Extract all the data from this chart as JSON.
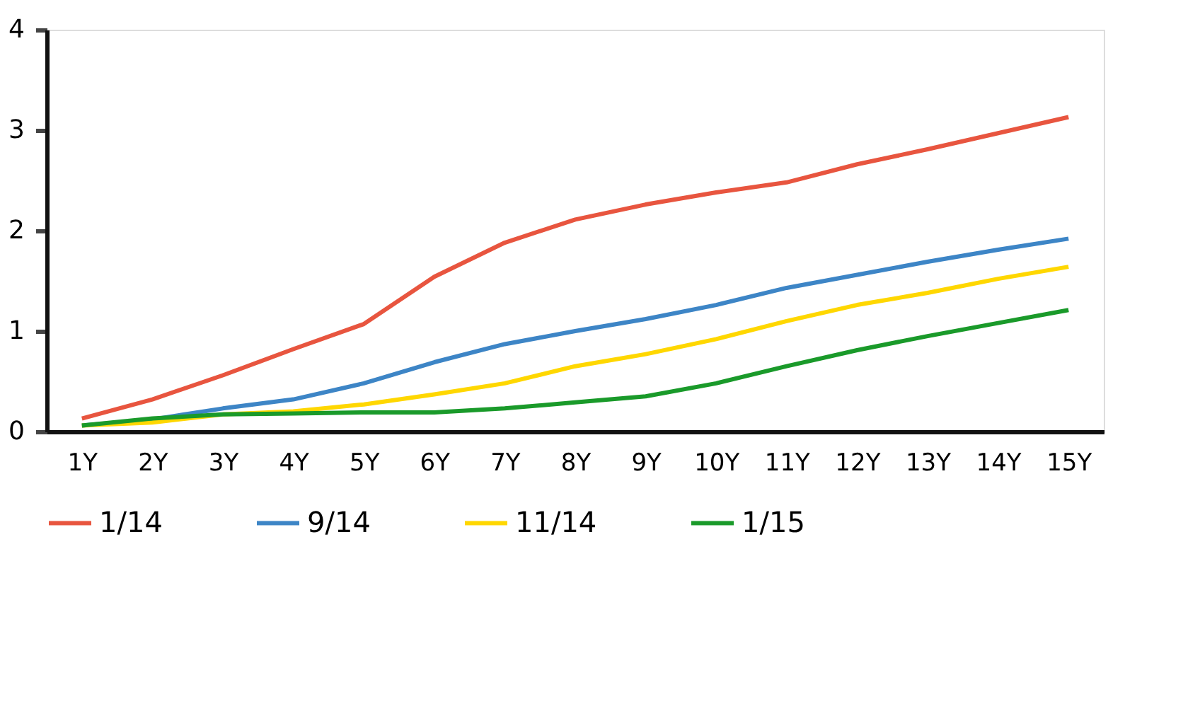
{
  "chart_data": {
    "type": "line",
    "categories": [
      "1Y",
      "2Y",
      "3Y",
      "4Y",
      "5Y",
      "6Y",
      "7Y",
      "8Y",
      "9Y",
      "10Y",
      "11Y",
      "12Y",
      "13Y",
      "14Y",
      "15Y"
    ],
    "series": [
      {
        "name": "1/14",
        "color": "#e8553f",
        "values": [
          0.13,
          0.32,
          0.56,
          0.82,
          1.07,
          1.54,
          1.88,
          2.11,
          2.26,
          2.38,
          2.48,
          2.66,
          2.81,
          2.97,
          3.13
        ]
      },
      {
        "name": "9/14",
        "color": "#3d85c6",
        "values": [
          0.06,
          0.12,
          0.23,
          0.32,
          0.48,
          0.69,
          0.87,
          1.0,
          1.12,
          1.26,
          1.43,
          1.56,
          1.69,
          1.81,
          1.92
        ]
      },
      {
        "name": "11/14",
        "color": "#ffd700",
        "values": [
          0.06,
          0.09,
          0.17,
          0.2,
          0.27,
          0.37,
          0.48,
          0.65,
          0.77,
          0.92,
          1.1,
          1.26,
          1.38,
          1.52,
          1.64
        ]
      },
      {
        "name": "1/15",
        "color": "#1a9a2a",
        "values": [
          0.06,
          0.13,
          0.17,
          0.18,
          0.19,
          0.19,
          0.23,
          0.29,
          0.35,
          0.48,
          0.65,
          0.81,
          0.95,
          1.08,
          1.21
        ]
      }
    ],
    "ylim": [
      0,
      4
    ],
    "yticks": [
      0,
      1,
      2,
      3,
      4
    ],
    "grid": false,
    "legend": "bottom",
    "marker": "none",
    "line_style": "solid"
  }
}
